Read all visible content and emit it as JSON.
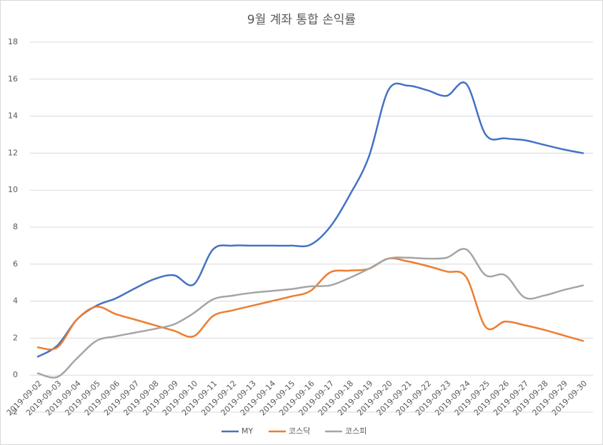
{
  "chart_data": {
    "type": "line",
    "title": "9월 계좌 통합 손익률",
    "categories": [
      "2019-09-02",
      "2019-09-03",
      "2019-09-04",
      "2019-09-05",
      "2019-09-06",
      "2019-09-07",
      "2019-09-08",
      "2019-09-09",
      "2019-09-10",
      "2019-09-11",
      "2019-09-12",
      "2019-09-13",
      "2019-09-14",
      "2019-09-15",
      "2019-09-16",
      "2019-09-17",
      "2019-09-18",
      "2019-09-19",
      "2019-09-20",
      "2019-09-21",
      "2019-09-22",
      "2019-09-23",
      "2019-09-24",
      "2019-09-25",
      "2019-09-26",
      "2019-09-27",
      "2019-09-28",
      "2019-09-29",
      "2019-09-30"
    ],
    "series": [
      {
        "name": "MY",
        "color": "#4472c4",
        "values": [
          1.0,
          1.6,
          3.0,
          3.75,
          4.15,
          4.7,
          5.2,
          5.4,
          4.9,
          6.8,
          7.0,
          7.0,
          7.0,
          7.0,
          7.05,
          8.0,
          9.7,
          11.8,
          15.4,
          15.65,
          15.4,
          15.1,
          15.75,
          13.0,
          12.8,
          12.7,
          12.45,
          12.2,
          12.0
        ]
      },
      {
        "name": "코스닥",
        "color": "#ed7d31",
        "values": [
          1.5,
          1.5,
          3.0,
          3.7,
          3.3,
          3.0,
          2.7,
          2.4,
          2.1,
          3.2,
          3.5,
          3.75,
          4.0,
          4.25,
          4.55,
          5.55,
          5.65,
          5.75,
          6.3,
          6.15,
          5.9,
          5.6,
          5.3,
          2.6,
          2.9,
          2.7,
          2.45,
          2.15,
          1.85
        ]
      },
      {
        "name": "코스피",
        "color": "#a5a5a5",
        "values": [
          0.1,
          -0.1,
          0.9,
          1.85,
          2.1,
          2.3,
          2.5,
          2.75,
          3.35,
          4.1,
          4.3,
          4.45,
          4.55,
          4.65,
          4.8,
          4.85,
          5.25,
          5.75,
          6.3,
          6.35,
          6.3,
          6.35,
          6.8,
          5.4,
          5.4,
          4.2,
          4.3,
          4.6,
          4.85
        ]
      }
    ],
    "ylim": [
      -2,
      18
    ],
    "yticks": [
      -2,
      0,
      2,
      4,
      6,
      8,
      10,
      12,
      14,
      16,
      18
    ],
    "grid": true,
    "legend": "bottom"
  }
}
